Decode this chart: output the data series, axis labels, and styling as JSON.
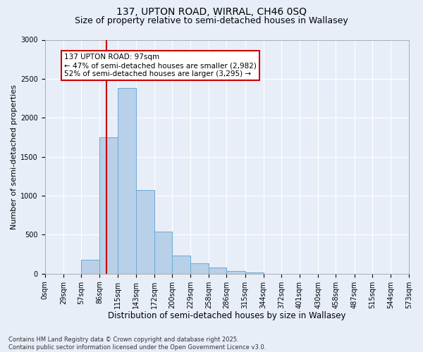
{
  "title_line1": "137, UPTON ROAD, WIRRAL, CH46 0SQ",
  "title_line2": "Size of property relative to semi-detached houses in Wallasey",
  "xlabel": "Distribution of semi-detached houses by size in Wallasey",
  "ylabel": "Number of semi-detached properties",
  "bin_labels": [
    "0sqm",
    "29sqm",
    "57sqm",
    "86sqm",
    "115sqm",
    "143sqm",
    "172sqm",
    "200sqm",
    "229sqm",
    "258sqm",
    "286sqm",
    "315sqm",
    "344sqm",
    "372sqm",
    "401sqm",
    "430sqm",
    "458sqm",
    "487sqm",
    "515sqm",
    "544sqm",
    "573sqm"
  ],
  "bin_edges": [
    0,
    29,
    57,
    86,
    115,
    143,
    172,
    200,
    229,
    258,
    286,
    315,
    344,
    372,
    401,
    430,
    458,
    487,
    515,
    544,
    573
  ],
  "bar_heights": [
    0,
    0,
    180,
    1750,
    2380,
    1070,
    540,
    230,
    130,
    80,
    35,
    20,
    0,
    0,
    0,
    0,
    0,
    0,
    0,
    0
  ],
  "bar_color": "#b8d0e8",
  "bar_edge_color": "#6aaad4",
  "vline_x": 97,
  "vline_color": "#cc0000",
  "annotation_text": "137 UPTON ROAD: 97sqm\n← 47% of semi-detached houses are smaller (2,982)\n52% of semi-detached houses are larger (3,295) →",
  "annotation_box_color": "#cc0000",
  "annotation_text_color": "#000000",
  "ylim": [
    0,
    3000
  ],
  "yticks": [
    0,
    500,
    1000,
    1500,
    2000,
    2500,
    3000
  ],
  "background_color": "#e8eef8",
  "grid_color": "#ffffff",
  "footer_text": "Contains HM Land Registry data © Crown copyright and database right 2025.\nContains public sector information licensed under the Open Government Licence v3.0.",
  "title_fontsize": 10,
  "subtitle_fontsize": 9,
  "xlabel_fontsize": 8.5,
  "ylabel_fontsize": 8,
  "tick_fontsize": 7,
  "footer_fontsize": 6,
  "annot_fontsize": 7.5
}
